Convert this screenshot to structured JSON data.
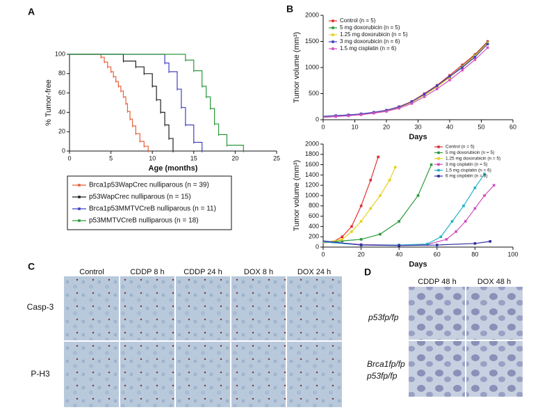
{
  "panel_labels": [
    "A",
    "B",
    "C",
    "D"
  ],
  "chart_data": [
    {
      "type": "step",
      "x_label": "Age (months)",
      "y_label": "% Tumor-free",
      "xlim": [
        0,
        25
      ],
      "ylim": [
        0,
        100
      ],
      "xticks": [
        0,
        5,
        10,
        15,
        20,
        25
      ],
      "yticks": [
        0,
        20,
        40,
        60,
        80,
        100
      ],
      "legend": "below",
      "series": [
        {
          "name": "Brca1p53WapCrec nulliparous (n = 39)",
          "color": "#e8603c",
          "x": [
            0,
            3.8,
            4.2,
            4.6,
            5,
            5.3,
            5.6,
            5.9,
            6.2,
            6.5,
            6.8,
            7,
            7.3,
            7.6,
            8,
            8.5,
            9,
            9.5
          ],
          "values": [
            100,
            97,
            92,
            87,
            82,
            77,
            72,
            67,
            62,
            56,
            49,
            41,
            33,
            26,
            18,
            10,
            5,
            0
          ]
        },
        {
          "name": "p53WapCrec nulliparous (n = 15)",
          "color": "#222222",
          "x": [
            0,
            6.5,
            8,
            9,
            10,
            10.5,
            11,
            11.5,
            12,
            12.5
          ],
          "values": [
            100,
            93,
            87,
            80,
            67,
            53,
            40,
            27,
            13,
            0
          ]
        },
        {
          "name": "Brca1p53MMTVCreB nulliparous (n = 11)",
          "color": "#4040c0",
          "x": [
            0,
            11.5,
            12,
            13,
            13.5,
            14,
            15,
            16
          ],
          "values": [
            100,
            91,
            82,
            64,
            45,
            27,
            9,
            0
          ]
        },
        {
          "name": "p53MMTVCreB nulliparous (n = 18)",
          "color": "#2a9a3a",
          "x": [
            0,
            14,
            15,
            16,
            16.5,
            17,
            17.5,
            18,
            19,
            21
          ],
          "values": [
            100,
            94,
            83,
            67,
            56,
            44,
            28,
            17,
            6,
            0
          ]
        }
      ]
    },
    {
      "type": "line",
      "x_label": "Days",
      "y_label": "Tumor volume (mm³)",
      "xlim": [
        0,
        60
      ],
      "ylim": [
        0,
        2000
      ],
      "xticks": [
        0,
        10,
        20,
        30,
        40,
        50,
        60
      ],
      "yticks": [
        0,
        500,
        1000,
        1500,
        2000
      ],
      "legend": "upper left",
      "x": [
        0,
        4,
        8,
        12,
        16,
        20,
        24,
        28,
        32,
        36,
        40,
        44,
        48,
        52
      ],
      "series": [
        {
          "name": "Control (n = 5)",
          "color": "#e03030",
          "values": [
            60,
            75,
            90,
            110,
            140,
            180,
            250,
            350,
            500,
            660,
            850,
            1050,
            1250,
            1500
          ]
        },
        {
          "name": "5 mg doxorubicin (n = 5)",
          "color": "#2a9a3a",
          "values": [
            55,
            70,
            85,
            105,
            135,
            175,
            240,
            340,
            480,
            640,
            820,
            1020,
            1230,
            1480
          ]
        },
        {
          "name": "1.25 mg doxorubicin (n = 5)",
          "color": "#e8d020",
          "values": [
            50,
            65,
            80,
            100,
            130,
            170,
            235,
            330,
            470,
            630,
            810,
            1010,
            1220,
            1470
          ]
        },
        {
          "name": "3 mg doxorubicin (n = 6)",
          "color": "#4040c0",
          "values": [
            65,
            78,
            92,
            112,
            142,
            182,
            245,
            345,
            490,
            650,
            830,
            1000,
            1200,
            1450
          ]
        },
        {
          "name": "1.5 mg cisplatin (n = 6)",
          "color": "#d050c0",
          "values": [
            45,
            60,
            75,
            95,
            125,
            160,
            220,
            310,
            440,
            590,
            760,
            950,
            1150,
            1380
          ]
        }
      ]
    },
    {
      "type": "line",
      "x_label": "Days",
      "y_label": "Tumor volume (mm³)",
      "xlim": [
        0,
        100
      ],
      "ylim": [
        0,
        2000
      ],
      "xticks": [
        0,
        20,
        40,
        60,
        80,
        100
      ],
      "yticks": [
        0,
        200,
        400,
        600,
        800,
        1000,
        1200,
        1400,
        1600,
        1800,
        2000
      ],
      "legend": "upper right",
      "series": [
        {
          "name": "Control (n = 5)",
          "color": "#e03030",
          "x": [
            0,
            5,
            10,
            15,
            20,
            25,
            29
          ],
          "values": [
            80,
            100,
            200,
            400,
            800,
            1300,
            1750
          ]
        },
        {
          "name": "5 mg doxorubicin (n = 5)",
          "color": "#2a9a3a",
          "x": [
            0,
            10,
            20,
            30,
            40,
            50,
            57
          ],
          "values": [
            90,
            120,
            150,
            250,
            500,
            1000,
            1600
          ]
        },
        {
          "name": "1.25 mg doxorubicin (n = 5)",
          "color": "#e8d020",
          "x": [
            0,
            10,
            15,
            20,
            25,
            30,
            35,
            38
          ],
          "values": [
            80,
            150,
            300,
            500,
            750,
            1000,
            1300,
            1550
          ]
        },
        {
          "name": "3 mg cisplatin (n = 5)",
          "color": "#d050c0",
          "x": [
            0,
            20,
            40,
            55,
            65,
            70,
            75,
            80,
            85,
            90
          ],
          "values": [
            100,
            50,
            40,
            50,
            150,
            300,
            500,
            750,
            1000,
            1200
          ]
        },
        {
          "name": "1.5 mg cisplatin (n = 6)",
          "color": "#20b0c8",
          "x": [
            0,
            20,
            40,
            55,
            62,
            68,
            74,
            80,
            85
          ],
          "values": [
            100,
            40,
            40,
            60,
            200,
            500,
            800,
            1150,
            1420
          ]
        },
        {
          "name": "6 mg cisplatin (n = 8)",
          "color": "#3030a0",
          "x": [
            0,
            20,
            40,
            60,
            80,
            88
          ],
          "values": [
            120,
            40,
            30,
            40,
            70,
            110
          ]
        }
      ]
    }
  ],
  "panel_c": {
    "columns": [
      "Control",
      "CDDP 8 h",
      "CDDP 24 h",
      "DOX 8 h",
      "DOX 24 h"
    ],
    "rows": [
      "Casp-3",
      "P-H3"
    ]
  },
  "panel_d": {
    "columns": [
      "CDDP 48 h",
      "DOX 48 h"
    ],
    "rows": [
      "p53fp/fp",
      "Brca1fp/fp",
      "p53fp/fp"
    ]
  }
}
